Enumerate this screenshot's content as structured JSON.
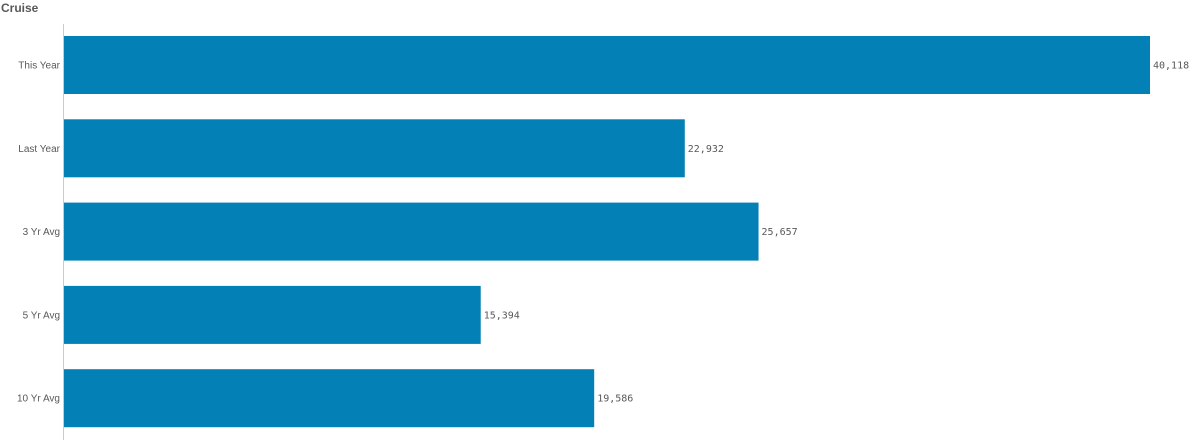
{
  "chart_data": {
    "type": "bar",
    "orientation": "horizontal",
    "title": "Cruise",
    "categories": [
      "This Year",
      "Last Year",
      "3 Yr Avg",
      "5 Yr Avg",
      "10 Yr Avg"
    ],
    "values": [
      40118,
      22932,
      25657,
      15394,
      19586
    ],
    "value_labels": [
      "40,118",
      "22,932",
      "25,657",
      "15,394",
      "19,586"
    ],
    "xlim": [
      0,
      40118
    ],
    "grid": false,
    "bar_color": "#0380b5",
    "axis_color": "#cccccc"
  }
}
